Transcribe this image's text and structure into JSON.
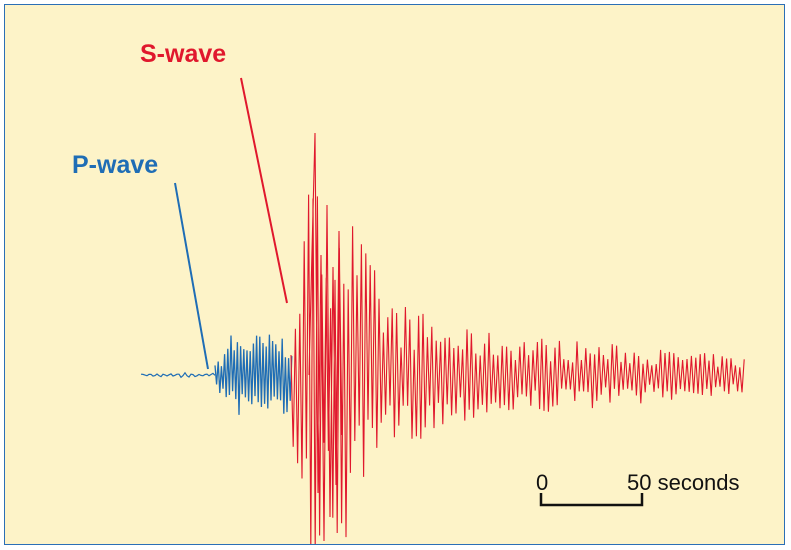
{
  "labels": {
    "p_wave": "P-wave",
    "s_wave": "S-wave"
  },
  "scale_bar": {
    "start_label": "0",
    "end_label": "50 seconds"
  },
  "colors": {
    "background": "#fdf3c8",
    "border": "#2b6fb6",
    "p_wave": "#1f6db5",
    "s_wave": "#e0182d",
    "scale": "#111111"
  }
}
